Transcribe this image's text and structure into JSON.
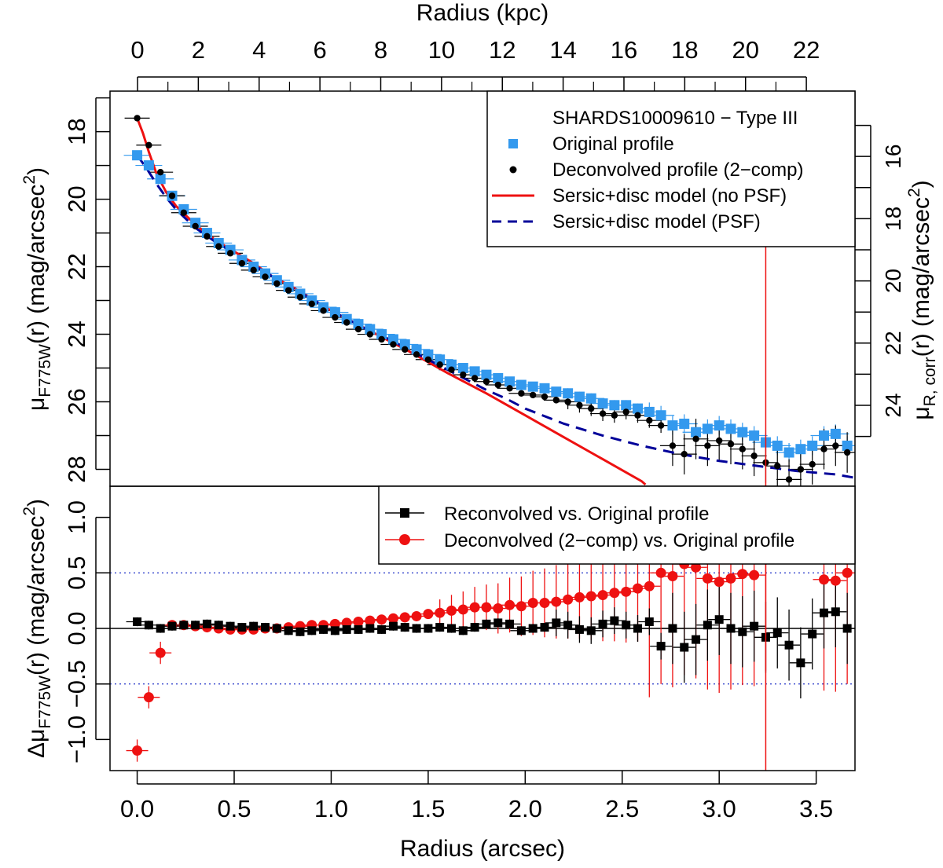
{
  "chart_data": {
    "type": "scatter",
    "title": "SHARDS10009610  −  Type III",
    "top_axis": {
      "label": "Radius (kpc)",
      "ticks": [
        "0",
        "2",
        "4",
        "6",
        "8",
        "10",
        "12",
        "14",
        "16",
        "18",
        "20",
        "22"
      ],
      "range": [
        0,
        23.6
      ]
    },
    "bottom_axis": {
      "label": "Radius (arcsec)",
      "ticks": [
        "0.0",
        "0.5",
        "1.0",
        "1.5",
        "2.0",
        "2.5",
        "3.0",
        "3.5"
      ],
      "range": [
        -0.14,
        3.7
      ]
    },
    "upper_panel": {
      "ylabel_main": "μ",
      "ylabel_sub": "F775W",
      "ylabel_rest": "(r) (mag/arcsec",
      "ylabel_sup": "2",
      "ylabel_end": ")",
      "ylim": [
        16.8,
        28.5
      ],
      "yticks": [
        "18",
        "20",
        "22",
        "24",
        "26",
        "28"
      ],
      "right_axis": {
        "label_main": "μ",
        "label_sub": "R, corr",
        "label_rest": "(r) (mag/arcsec",
        "label_sup": "2",
        "label_end": ")",
        "ylim": [
          13.9,
          26.6
        ],
        "ticks": [
          "16",
          "18",
          "20",
          "22",
          "24"
        ]
      },
      "series": [
        {
          "name": "Original profile",
          "marker": "square",
          "color": "#3399ee",
          "x": [
            0.0,
            0.06,
            0.12,
            0.18,
            0.24,
            0.3,
            0.36,
            0.42,
            0.48,
            0.54,
            0.6,
            0.66,
            0.72,
            0.78,
            0.84,
            0.9,
            0.96,
            1.02,
            1.08,
            1.14,
            1.2,
            1.26,
            1.32,
            1.38,
            1.44,
            1.5,
            1.56,
            1.62,
            1.68,
            1.74,
            1.8,
            1.86,
            1.92,
            1.98,
            2.04,
            2.1,
            2.16,
            2.22,
            2.28,
            2.34,
            2.4,
            2.46,
            2.52,
            2.58,
            2.64,
            2.7,
            2.76,
            2.82,
            2.88,
            2.94,
            3.0,
            3.06,
            3.12,
            3.18,
            3.24,
            3.3,
            3.36,
            3.42,
            3.48,
            3.54,
            3.6,
            3.66
          ],
          "y": [
            18.7,
            19.0,
            19.4,
            19.9,
            20.3,
            20.7,
            21.0,
            21.3,
            21.5,
            21.8,
            22.0,
            22.2,
            22.4,
            22.6,
            22.8,
            23.0,
            23.2,
            23.35,
            23.55,
            23.7,
            23.85,
            24.0,
            24.15,
            24.3,
            24.45,
            24.6,
            24.75,
            24.9,
            25.0,
            25.1,
            25.2,
            25.3,
            25.4,
            25.5,
            25.55,
            25.6,
            25.7,
            25.75,
            25.85,
            25.9,
            26.05,
            26.1,
            26.1,
            26.2,
            26.3,
            26.4,
            26.7,
            26.65,
            26.9,
            26.8,
            26.7,
            26.8,
            26.9,
            27.0,
            27.2,
            27.3,
            27.5,
            27.4,
            27.3,
            27.0,
            26.95,
            27.3
          ]
        },
        {
          "name": "Deconvolved profile (2−comp)",
          "marker": "dot",
          "color": "#000000",
          "x": [
            0.0,
            0.06,
            0.12,
            0.18,
            0.24,
            0.3,
            0.36,
            0.42,
            0.48,
            0.54,
            0.6,
            0.66,
            0.72,
            0.78,
            0.84,
            0.9,
            0.96,
            1.02,
            1.08,
            1.14,
            1.2,
            1.26,
            1.32,
            1.38,
            1.44,
            1.5,
            1.56,
            1.62,
            1.68,
            1.74,
            1.8,
            1.86,
            1.92,
            1.98,
            2.04,
            2.1,
            2.16,
            2.22,
            2.28,
            2.34,
            2.4,
            2.46,
            2.52,
            2.58,
            2.64,
            2.7,
            2.76,
            2.82,
            2.88,
            2.94,
            3.0,
            3.06,
            3.12,
            3.18,
            3.24,
            3.3,
            3.36,
            3.42,
            3.48,
            3.54,
            3.6,
            3.66
          ],
          "y": [
            17.6,
            18.4,
            19.2,
            19.9,
            20.4,
            20.8,
            21.1,
            21.4,
            21.6,
            21.9,
            22.1,
            22.3,
            22.5,
            22.7,
            22.9,
            23.1,
            23.3,
            23.5,
            23.65,
            23.85,
            24.0,
            24.15,
            24.3,
            24.45,
            24.6,
            24.75,
            24.9,
            25.05,
            25.2,
            25.3,
            25.4,
            25.5,
            25.6,
            25.75,
            25.8,
            25.85,
            25.95,
            26.0,
            26.1,
            26.2,
            26.35,
            26.4,
            26.3,
            26.4,
            26.55,
            26.7,
            27.3,
            27.55,
            27.1,
            27.3,
            27.15,
            27.25,
            27.4,
            27.6,
            27.8,
            27.9,
            28.3,
            28.0,
            27.85,
            27.4,
            27.3,
            27.5
          ]
        },
        {
          "name": "Sersic+disc model (no PSF)",
          "style": "solid",
          "color": "#ee1111",
          "x": [
            0.0,
            0.03,
            0.06,
            0.1,
            0.15,
            0.2,
            0.3,
            0.4,
            0.5,
            0.6,
            0.7,
            0.8,
            0.9,
            1.0,
            1.1,
            1.2,
            1.4,
            1.6,
            1.8,
            2.0,
            2.2,
            2.4,
            2.6,
            2.62
          ],
          "y": [
            17.6,
            18.05,
            18.6,
            19.25,
            19.8,
            20.2,
            20.75,
            21.2,
            21.55,
            21.9,
            22.3,
            22.6,
            22.95,
            23.3,
            23.6,
            23.9,
            24.5,
            25.15,
            25.75,
            26.4,
            27.05,
            27.7,
            28.35,
            28.45
          ]
        },
        {
          "name": "Sersic+disc model (PSF)",
          "style": "dashed",
          "color": "#000099",
          "x": [
            0.0,
            0.05,
            0.1,
            0.15,
            0.2,
            0.3,
            0.4,
            0.5,
            0.6,
            0.7,
            0.8,
            0.9,
            1.0,
            1.1,
            1.2,
            1.3,
            1.4,
            1.5,
            1.6,
            1.7,
            1.8,
            1.9,
            2.0,
            2.2,
            2.4,
            2.6,
            2.8,
            3.0,
            3.2,
            3.4,
            3.6,
            3.7
          ],
          "y": [
            18.7,
            19.1,
            19.55,
            19.95,
            20.3,
            20.85,
            21.25,
            21.6,
            21.95,
            22.3,
            22.65,
            22.95,
            23.3,
            23.6,
            23.9,
            24.15,
            24.45,
            24.75,
            25.05,
            25.35,
            25.65,
            25.9,
            26.2,
            26.65,
            27.0,
            27.3,
            27.55,
            27.75,
            27.9,
            28.05,
            28.15,
            28.25
          ]
        }
      ]
    },
    "lower_panel": {
      "ylabel_pre": "Δμ",
      "ylabel_sub": "F775W",
      "ylabel_rest": "(r) (mag/arcsec",
      "ylabel_sup": "2",
      "ylabel_end": ")",
      "ylim": [
        -1.28,
        1.28
      ],
      "yticks": [
        "−1.0",
        "−0.5",
        "0.0",
        "0.5",
        "1.0"
      ],
      "ytick_values": [
        -1.0,
        -0.5,
        0.0,
        0.5,
        1.0
      ],
      "reference_lines": [
        -0.5,
        0.0,
        0.5
      ],
      "series": [
        {
          "name": "Reconvolved vs. Original profile",
          "marker": "square",
          "color": "#000000",
          "x": [
            0.0,
            0.06,
            0.12,
            0.18,
            0.24,
            0.3,
            0.36,
            0.42,
            0.48,
            0.54,
            0.6,
            0.66,
            0.72,
            0.78,
            0.84,
            0.9,
            0.96,
            1.02,
            1.08,
            1.14,
            1.2,
            1.26,
            1.32,
            1.38,
            1.44,
            1.5,
            1.56,
            1.62,
            1.68,
            1.74,
            1.8,
            1.86,
            1.92,
            1.98,
            2.04,
            2.1,
            2.16,
            2.22,
            2.28,
            2.34,
            2.4,
            2.46,
            2.52,
            2.58,
            2.64,
            2.7,
            2.76,
            2.82,
            2.88,
            2.94,
            3.0,
            3.06,
            3.12,
            3.18,
            3.24,
            3.3,
            3.36,
            3.42,
            3.48,
            3.54,
            3.6,
            3.66
          ],
          "y": [
            0.06,
            0.03,
            0.0,
            0.02,
            0.03,
            0.03,
            0.04,
            0.03,
            0.02,
            0.01,
            0.02,
            0.01,
            0.0,
            -0.02,
            -0.03,
            -0.02,
            -0.01,
            -0.02,
            -0.01,
            -0.01,
            0.0,
            -0.01,
            0.02,
            0.01,
            0.0,
            0.0,
            0.01,
            0.0,
            -0.02,
            0.01,
            0.04,
            0.05,
            0.04,
            -0.02,
            0.0,
            0.01,
            0.05,
            0.03,
            -0.01,
            -0.02,
            0.04,
            0.07,
            0.03,
            0.0,
            0.06,
            -0.16,
            0.0,
            -0.17,
            -0.1,
            0.03,
            0.08,
            0.0,
            -0.03,
            0.02,
            -0.08,
            -0.04,
            -0.15,
            -0.31,
            -0.05,
            0.14,
            0.15,
            0.0
          ]
        },
        {
          "name": "Deconvolved (2−comp) vs. Original profile",
          "marker": "dot",
          "color": "#ee1111",
          "x": [
            0.0,
            0.06,
            0.12,
            0.18,
            0.24,
            0.3,
            0.36,
            0.42,
            0.48,
            0.54,
            0.6,
            0.66,
            0.72,
            0.78,
            0.84,
            0.9,
            0.96,
            1.02,
            1.08,
            1.14,
            1.2,
            1.26,
            1.32,
            1.38,
            1.44,
            1.5,
            1.56,
            1.62,
            1.68,
            1.74,
            1.8,
            1.86,
            1.92,
            1.98,
            2.04,
            2.1,
            2.16,
            2.22,
            2.28,
            2.34,
            2.4,
            2.46,
            2.52,
            2.58,
            2.64,
            2.7,
            2.76,
            2.82,
            2.88,
            2.94,
            3.0,
            3.06,
            3.12,
            3.18,
            3.24,
            3.54,
            3.6,
            3.66
          ],
          "y": [
            -1.1,
            -0.62,
            -0.22,
            0.03,
            0.03,
            0.02,
            0.01,
            0.0,
            -0.01,
            -0.01,
            -0.01,
            0.0,
            0.0,
            0.01,
            0.02,
            0.03,
            0.03,
            0.04,
            0.05,
            0.06,
            0.07,
            0.08,
            0.09,
            0.1,
            0.11,
            0.13,
            0.14,
            0.16,
            0.17,
            0.19,
            0.19,
            0.18,
            0.21,
            0.2,
            0.23,
            0.23,
            0.24,
            0.26,
            0.28,
            0.29,
            0.3,
            0.32,
            0.33,
            0.36,
            0.38,
            0.5,
            0.47,
            0.58,
            0.55,
            0.45,
            0.42,
            0.45,
            0.49,
            0.48,
            0.62,
            0.44,
            0.43,
            0.5
          ]
        }
      ]
    },
    "vertical_line": {
      "x": 3.24,
      "color": "#ee1111"
    },
    "legend_location": "top-right"
  }
}
